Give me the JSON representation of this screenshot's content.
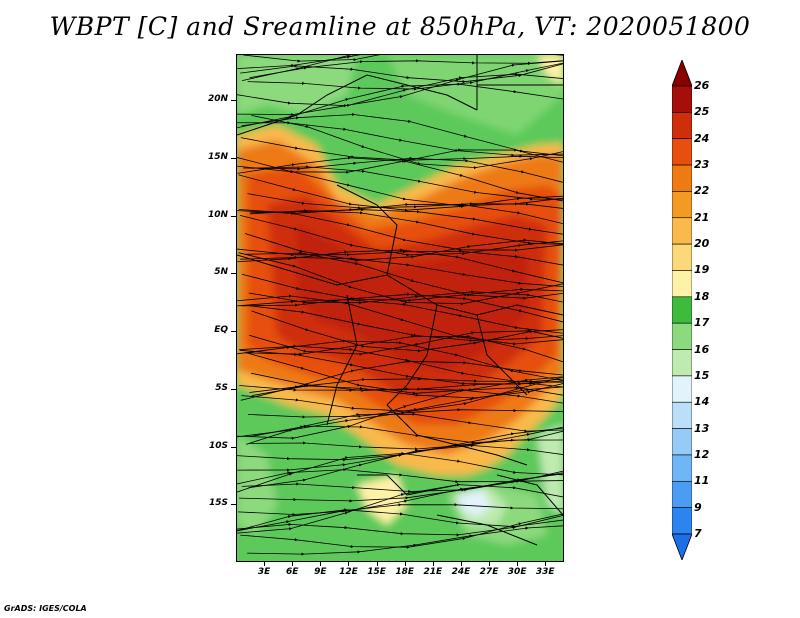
{
  "title": "WBPT [C] and Sreamline at 850hPa, VT: 2020051800",
  "credit": "GrADS: IGES/COLA",
  "map": {
    "lon_range": [
      0,
      35
    ],
    "lat_range": [
      -20,
      24
    ],
    "lat_labels": [
      {
        "lat": 20,
        "label": "20N"
      },
      {
        "lat": 15,
        "label": "15N"
      },
      {
        "lat": 10,
        "label": "10N"
      },
      {
        "lat": 5,
        "label": "5N"
      },
      {
        "lat": 0,
        "label": "EQ"
      },
      {
        "lat": -5,
        "label": "5S"
      },
      {
        "lat": -10,
        "label": "10S"
      },
      {
        "lat": -15,
        "label": "15S"
      }
    ],
    "lon_labels": [
      {
        "lon": 3,
        "label": "3E"
      },
      {
        "lon": 6,
        "label": "6E"
      },
      {
        "lon": 9,
        "label": "9E"
      },
      {
        "lon": 12,
        "label": "12E"
      },
      {
        "lon": 15,
        "label": "15E"
      },
      {
        "lon": 18,
        "label": "18E"
      },
      {
        "lon": 21,
        "label": "21E"
      },
      {
        "lon": 24,
        "label": "24E"
      },
      {
        "lon": 27,
        "label": "27E"
      },
      {
        "lon": 30,
        "label": "30E"
      },
      {
        "lon": 33,
        "label": "33E"
      }
    ]
  },
  "colorbar": {
    "levels": [
      "7",
      "9",
      "11",
      "12",
      "13",
      "14",
      "15",
      "16",
      "17",
      "18",
      "19",
      "20",
      "21",
      "22",
      "23",
      "24",
      "25",
      "26"
    ],
    "colors": [
      "#1e6ee8",
      "#2c84f0",
      "#4a9df2",
      "#70b5f5",
      "#96cbf7",
      "#bcdff9",
      "#e2f3fb",
      "#bfeab0",
      "#8dd97e",
      "#3cbb3c",
      "#fff2a8",
      "#fbd97a",
      "#f9b94c",
      "#f39a23",
      "#ee7a12",
      "#e64f0e",
      "#cf2e0b",
      "#a50e0a",
      "#8a0000"
    ]
  }
}
